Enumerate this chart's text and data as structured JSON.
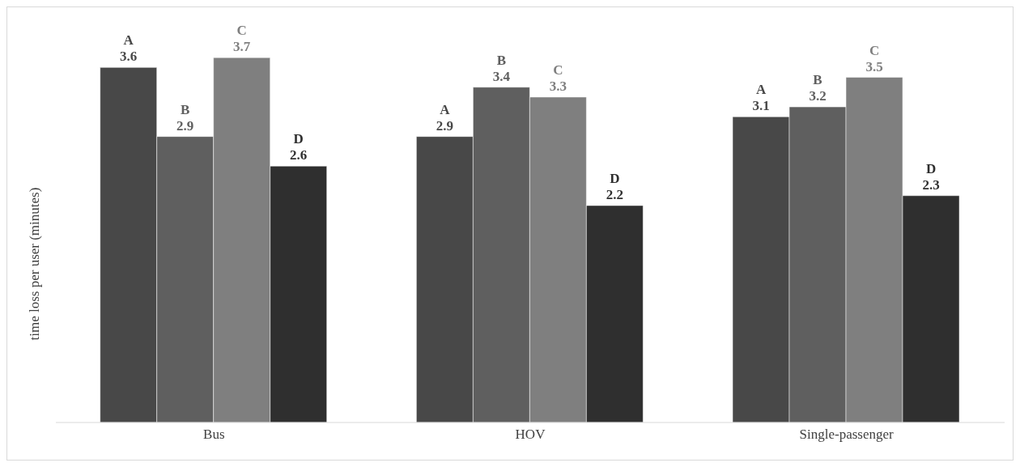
{
  "chart_data": {
    "type": "bar",
    "ylabel": "time loss per user (minutes)",
    "categories": [
      "Bus",
      "HOV",
      "Single-passenger"
    ],
    "series": [
      {
        "name": "A",
        "color": "#484848",
        "values": [
          3.6,
          2.9,
          3.1
        ]
      },
      {
        "name": "B",
        "color": "#5f5f5f",
        "values": [
          2.9,
          3.4,
          3.2
        ]
      },
      {
        "name": "C",
        "color": "#7f7f7f",
        "values": [
          3.7,
          3.3,
          3.5
        ]
      },
      {
        "name": "D",
        "color": "#2f2f2f",
        "values": [
          2.6,
          2.2,
          2.3
        ]
      }
    ],
    "data_labels": true,
    "legend": false,
    "grid": false
  }
}
